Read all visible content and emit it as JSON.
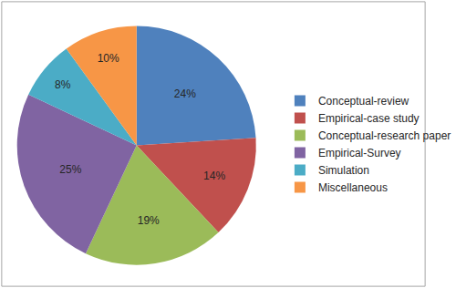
{
  "chart_data": {
    "type": "pie",
    "categories": [
      "Conceptual-review",
      "Empirical-case study",
      "Conceptual-research paper",
      "Empirical-Survey",
      "Simulation",
      "Miscellaneous"
    ],
    "values": [
      24,
      14,
      19,
      25,
      8,
      10
    ],
    "value_labels": [
      "24%",
      "14%",
      "19%",
      "25%",
      "8%",
      "10%"
    ],
    "colors": [
      "#4f81bd",
      "#c0504d",
      "#9bbb59",
      "#8064a2",
      "#4bacc6",
      "#f79646"
    ],
    "data_labels": true,
    "legend": "right"
  }
}
